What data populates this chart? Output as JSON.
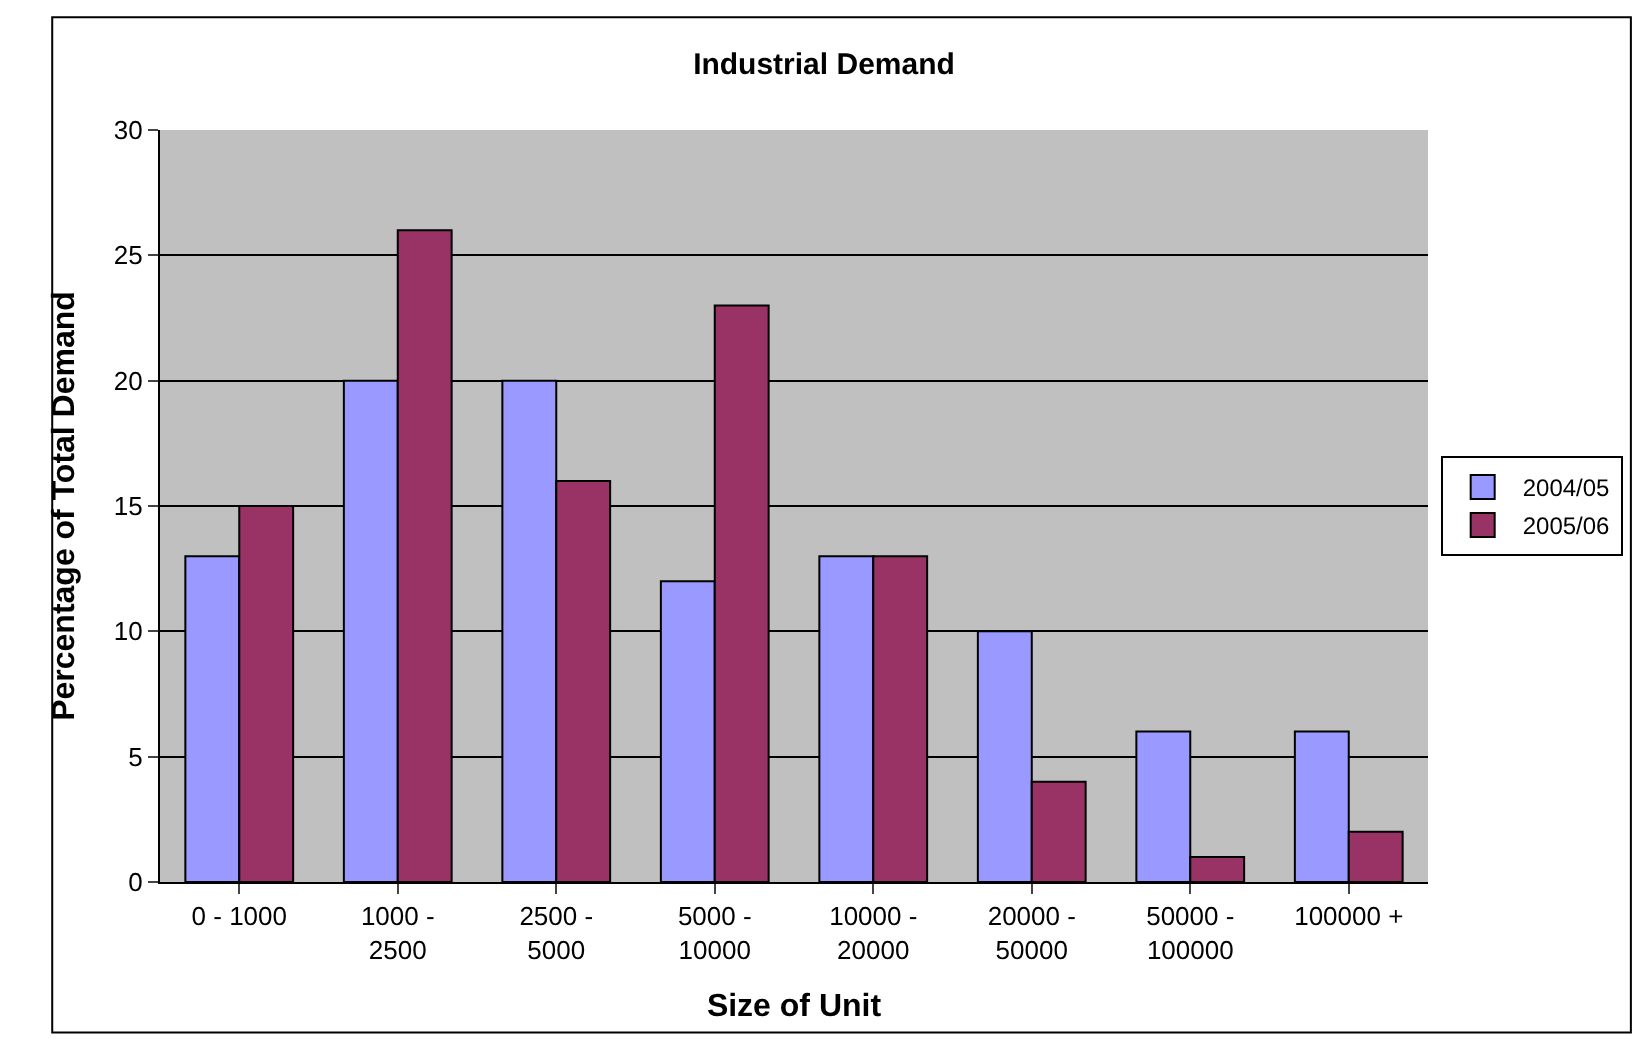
{
  "chart_data": {
    "type": "bar",
    "title": "Industrial Demand",
    "xlabel": "Size of Unit",
    "ylabel": "Percentage of Total Demand",
    "categories": [
      "0 - 1000",
      "1000 - 2500",
      "2500 - 5000",
      "5000 - 10000",
      "10000 - 20000",
      "20000 - 50000",
      "50000 - 100000",
      "100000 +"
    ],
    "series": [
      {
        "name": "2004/05",
        "color": "#9999ff",
        "values": [
          13,
          20,
          20,
          12,
          13,
          10,
          6,
          6
        ]
      },
      {
        "name": "2005/06",
        "color": "#993366",
        "values": [
          15,
          26,
          16,
          23,
          13,
          4,
          1,
          2
        ]
      }
    ],
    "ylim": [
      0,
      30
    ],
    "yticks": [
      0,
      5,
      10,
      15,
      20,
      25,
      30
    ],
    "grid": "y",
    "legend": "right"
  }
}
